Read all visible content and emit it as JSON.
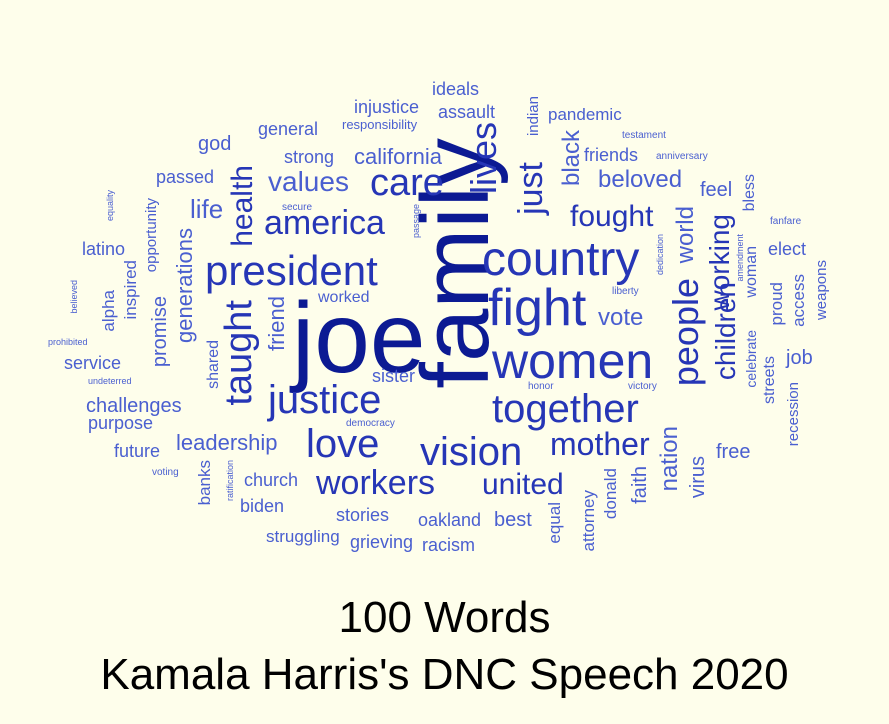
{
  "caption": {
    "line1": "100 Words",
    "line2": "Kamala Harris's DNC Speech 2020"
  },
  "palette": {
    "background": "#fefeeb",
    "dark": "#0c1a93",
    "mid": "#2636b6",
    "light": "#4a5fd0"
  },
  "words": [
    {
      "text": "joe",
      "weight": 100
    },
    {
      "text": "family",
      "weight": 98
    },
    {
      "text": "fight",
      "weight": 55
    },
    {
      "text": "country",
      "weight": 50
    },
    {
      "text": "women",
      "weight": 52
    },
    {
      "text": "president",
      "weight": 44
    },
    {
      "text": "justice",
      "weight": 44
    },
    {
      "text": "love",
      "weight": 42
    },
    {
      "text": "taught",
      "weight": 40
    },
    {
      "text": "together",
      "weight": 40
    },
    {
      "text": "vision",
      "weight": 40
    },
    {
      "text": "lives",
      "weight": 38
    },
    {
      "text": "care",
      "weight": 38
    },
    {
      "text": "america",
      "weight": 35
    },
    {
      "text": "people",
      "weight": 35
    },
    {
      "text": "just",
      "weight": 34
    },
    {
      "text": "workers",
      "weight": 34
    },
    {
      "text": "mother",
      "weight": 32
    },
    {
      "text": "values",
      "weight": 30
    },
    {
      "text": "united",
      "weight": 30
    },
    {
      "text": "health",
      "weight": 30
    },
    {
      "text": "fought",
      "weight": 28
    },
    {
      "text": "children",
      "weight": 28
    },
    {
      "text": "working",
      "weight": 28
    },
    {
      "text": "nation",
      "weight": 24
    },
    {
      "text": "vote",
      "weight": 24
    },
    {
      "text": "black",
      "weight": 24
    },
    {
      "text": "life",
      "weight": 24
    },
    {
      "text": "friend",
      "weight": 22
    },
    {
      "text": "beloved",
      "weight": 22
    },
    {
      "text": "california",
      "weight": 22
    },
    {
      "text": "world",
      "weight": 22
    },
    {
      "text": "generations",
      "weight": 21
    },
    {
      "text": "promise",
      "weight": 21
    },
    {
      "text": "leadership",
      "weight": 21
    },
    {
      "text": "challenges",
      "weight": 21
    },
    {
      "text": "virus",
      "weight": 20
    },
    {
      "text": "faith",
      "weight": 20
    },
    {
      "text": "free",
      "weight": 20
    },
    {
      "text": "feel",
      "weight": 20
    },
    {
      "text": "best",
      "weight": 20
    },
    {
      "text": "god",
      "weight": 20
    },
    {
      "text": "job",
      "weight": 20
    },
    {
      "text": "elect",
      "weight": 18
    },
    {
      "text": "friends",
      "weight": 18
    },
    {
      "text": "ideals",
      "weight": 18
    },
    {
      "text": "assault",
      "weight": 18
    },
    {
      "text": "injustice",
      "weight": 18
    },
    {
      "text": "pandemic",
      "weight": 18
    },
    {
      "text": "strong",
      "weight": 18
    },
    {
      "text": "general",
      "weight": 18
    },
    {
      "text": "passed",
      "weight": 18
    },
    {
      "text": "latino",
      "weight": 18
    },
    {
      "text": "service",
      "weight": 18
    },
    {
      "text": "purpose",
      "weight": 18
    },
    {
      "text": "future",
      "weight": 18
    },
    {
      "text": "church",
      "weight": 18
    },
    {
      "text": "biden",
      "weight": 18
    },
    {
      "text": "stories",
      "weight": 18
    },
    {
      "text": "struggling",
      "weight": 18
    },
    {
      "text": "grieving",
      "weight": 18
    },
    {
      "text": "oakland",
      "weight": 18
    },
    {
      "text": "racism",
      "weight": 18
    },
    {
      "text": "sister",
      "weight": 18
    },
    {
      "text": "worked",
      "weight": 17
    },
    {
      "text": "inspired",
      "weight": 18
    },
    {
      "text": "alpha",
      "weight": 18
    },
    {
      "text": "opportunity",
      "weight": 16
    },
    {
      "text": "shared",
      "weight": 17
    },
    {
      "text": "banks",
      "weight": 17
    },
    {
      "text": "equal",
      "weight": 17
    },
    {
      "text": "attorney",
      "weight": 17
    },
    {
      "text": "donald",
      "weight": 17
    },
    {
      "text": "indian",
      "weight": 16
    },
    {
      "text": "bless",
      "weight": 17
    },
    {
      "text": "woman",
      "weight": 17
    },
    {
      "text": "proud",
      "weight": 18
    },
    {
      "text": "access",
      "weight": 17
    },
    {
      "text": "weapons",
      "weight": 16
    },
    {
      "text": "celebrate",
      "weight": 15
    },
    {
      "text": "streets",
      "weight": 16
    },
    {
      "text": "recession",
      "weight": 16
    },
    {
      "text": "responsibility",
      "weight": 14
    },
    {
      "text": "testament",
      "weight": 10
    },
    {
      "text": "anniversary",
      "weight": 10
    },
    {
      "text": "fanfare",
      "weight": 10
    },
    {
      "text": "amendment",
      "weight": 10
    },
    {
      "text": "dedication",
      "weight": 10
    },
    {
      "text": "liberty",
      "weight": 11
    },
    {
      "text": "victory",
      "weight": 11
    },
    {
      "text": "honor",
      "weight": 10
    },
    {
      "text": "democracy",
      "weight": 10
    },
    {
      "text": "secure",
      "weight": 11
    },
    {
      "text": "passage",
      "weight": 10
    },
    {
      "text": "ratification",
      "weight": 10
    },
    {
      "text": "voting",
      "weight": 11
    },
    {
      "text": "equality",
      "weight": 10
    },
    {
      "text": "believed",
      "weight": 10
    },
    {
      "text": "prohibited",
      "weight": 10
    },
    {
      "text": "undeterred",
      "weight": 10
    }
  ]
}
